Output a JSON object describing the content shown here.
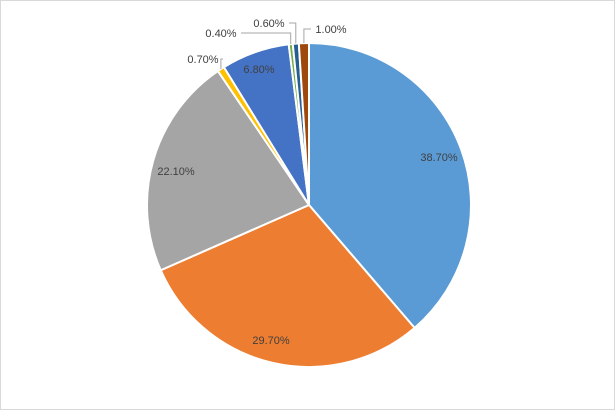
{
  "chart_data": {
    "type": "pie",
    "start_angle_deg": 0,
    "direction": "clockwise",
    "legend": "none",
    "slices": [
      {
        "value": 38.7,
        "label": "38.70%",
        "color": "#5b9bd5"
      },
      {
        "value": 29.7,
        "label": "29.70%",
        "color": "#ed7d31"
      },
      {
        "value": 22.1,
        "label": "22.10%",
        "color": "#a5a5a5"
      },
      {
        "value": 0.7,
        "label": "0.70%",
        "color": "#ffc000"
      },
      {
        "value": 6.8,
        "label": "6.80%",
        "color": "#4472c4"
      },
      {
        "value": 0.4,
        "label": "0.40%",
        "color": "#70ad47"
      },
      {
        "value": 0.6,
        "label": "0.60%",
        "color": "#255e91"
      },
      {
        "value": 1.0,
        "label": "1.00%",
        "color": "#9e480e"
      }
    ]
  }
}
